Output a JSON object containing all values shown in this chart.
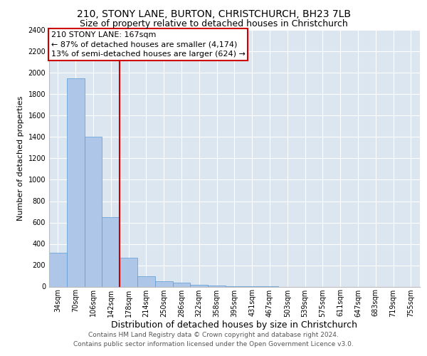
{
  "title": "210, STONY LANE, BURTON, CHRISTCHURCH, BH23 7LB",
  "subtitle": "Size of property relative to detached houses in Christchurch",
  "xlabel": "Distribution of detached houses by size in Christchurch",
  "ylabel": "Number of detached properties",
  "categories": [
    "34sqm",
    "70sqm",
    "106sqm",
    "142sqm",
    "178sqm",
    "214sqm",
    "250sqm",
    "286sqm",
    "322sqm",
    "358sqm",
    "395sqm",
    "431sqm",
    "467sqm",
    "503sqm",
    "539sqm",
    "575sqm",
    "611sqm",
    "647sqm",
    "683sqm",
    "719sqm",
    "755sqm"
  ],
  "bar_heights": [
    320,
    1950,
    1400,
    650,
    270,
    100,
    50,
    40,
    20,
    10,
    5,
    2,
    1,
    0,
    0,
    0,
    0,
    0,
    0,
    0,
    0
  ],
  "bar_color": "#aec6e8",
  "bar_edge_color": "#5b9bd5",
  "background_color": "#dce6f1",
  "grid_color": "#ffffff",
  "annotation_line1": "210 STONY LANE: 167sqm",
  "annotation_line2": "← 87% of detached houses are smaller (4,174)",
  "annotation_line3": "13% of semi-detached houses are larger (624) →",
  "annotation_box_color": "#ffffff",
  "annotation_box_edge_color": "#cc0000",
  "vline_color": "#cc0000",
  "ylim": [
    0,
    2400
  ],
  "yticks": [
    0,
    200,
    400,
    600,
    800,
    1000,
    1200,
    1400,
    1600,
    1800,
    2000,
    2200,
    2400
  ],
  "footer_line1": "Contains HM Land Registry data © Crown copyright and database right 2024.",
  "footer_line2": "Contains public sector information licensed under the Open Government Licence v3.0.",
  "title_fontsize": 10,
  "subtitle_fontsize": 9,
  "xlabel_fontsize": 9,
  "ylabel_fontsize": 8,
  "tick_fontsize": 7,
  "annotation_fontsize": 8,
  "footer_fontsize": 6.5
}
